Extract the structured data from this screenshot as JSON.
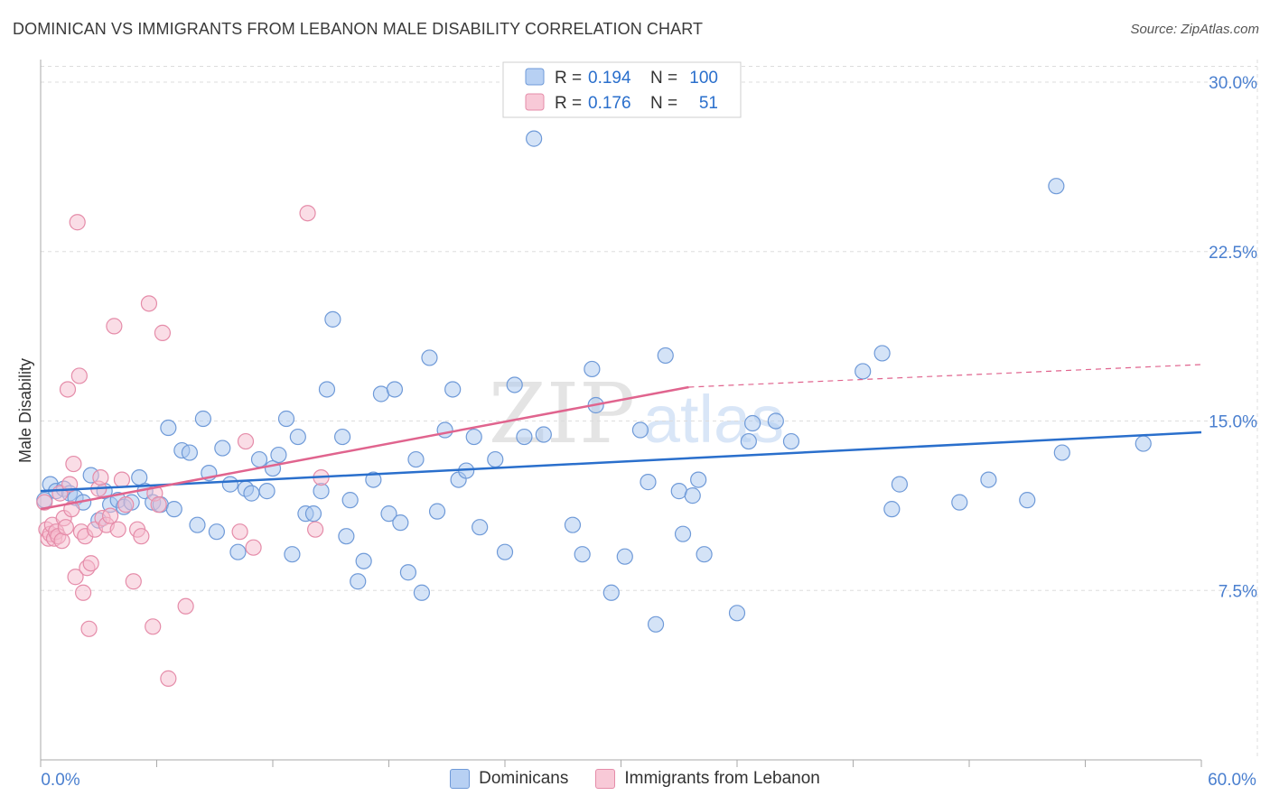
{
  "header": {
    "title": "DOMINICAN VS IMMIGRANTS FROM LEBANON MALE DISABILITY CORRELATION CHART",
    "source": "Source: ZipAtlas.com"
  },
  "watermark": {
    "zip": "ZIP",
    "atlas": "atlas"
  },
  "colors": {
    "blue_fill": "#a9c7f0",
    "blue_stroke": "#6f9ad8",
    "blue_line": "#2a6fcc",
    "pink_fill": "#f6bccd",
    "pink_stroke": "#e58ca9",
    "pink_line": "#e0648e",
    "axis_text": "#4a7fcf",
    "grid": "#dddddd"
  },
  "chart_data": {
    "type": "scatter",
    "title": "DOMINICAN VS IMMIGRANTS FROM LEBANON MALE DISABILITY CORRELATION CHART",
    "xlabel": "",
    "ylabel": "Male Disability",
    "xlim": [
      0,
      60
    ],
    "ylim": [
      0,
      31
    ],
    "x_tick_labels": [
      "0.0%",
      "60.0%"
    ],
    "y_ticks": [
      7.5,
      15.0,
      22.5,
      30.0
    ],
    "y_tick_labels": [
      "7.5%",
      "15.0%",
      "22.5%",
      "30.0%"
    ],
    "grid": true,
    "legend_position": "top-center",
    "stats": [
      {
        "r_label": "R =",
        "r": "0.194",
        "n_label": "N =",
        "n": "100"
      },
      {
        "r_label": "R =",
        "r": "0.176",
        "n_label": "N =",
        "n": "51"
      }
    ],
    "series": [
      {
        "name": "Dominicans",
        "trend": {
          "x0": 0,
          "y0": 11.9,
          "x1": 60,
          "y1": 14.5
        },
        "points": [
          [
            0.5,
            12.2
          ],
          [
            0.8,
            11.9
          ],
          [
            1.2,
            12.0
          ],
          [
            1.5,
            11.8
          ],
          [
            1.8,
            11.6
          ],
          [
            2.2,
            11.4
          ],
          [
            2.6,
            12.6
          ],
          [
            3.0,
            10.6
          ],
          [
            3.3,
            11.9
          ],
          [
            3.6,
            11.3
          ],
          [
            4.0,
            11.5
          ],
          [
            4.3,
            11.2
          ],
          [
            4.7,
            11.4
          ],
          [
            5.1,
            12.5
          ],
          [
            5.4,
            11.9
          ],
          [
            5.8,
            11.4
          ],
          [
            6.2,
            11.3
          ],
          [
            6.6,
            14.7
          ],
          [
            6.9,
            11.1
          ],
          [
            7.3,
            13.7
          ],
          [
            7.7,
            13.6
          ],
          [
            8.1,
            10.4
          ],
          [
            8.4,
            15.1
          ],
          [
            8.7,
            12.7
          ],
          [
            9.1,
            10.1
          ],
          [
            9.4,
            13.8
          ],
          [
            9.8,
            12.2
          ],
          [
            10.2,
            9.2
          ],
          [
            10.6,
            12.0
          ],
          [
            10.9,
            11.8
          ],
          [
            11.3,
            13.3
          ],
          [
            11.7,
            11.9
          ],
          [
            12.0,
            12.9
          ],
          [
            12.3,
            13.5
          ],
          [
            12.7,
            15.1
          ],
          [
            13.0,
            9.1
          ],
          [
            13.3,
            14.3
          ],
          [
            13.7,
            10.9
          ],
          [
            14.1,
            10.9
          ],
          [
            14.5,
            11.9
          ],
          [
            14.8,
            16.4
          ],
          [
            15.1,
            19.5
          ],
          [
            15.6,
            14.3
          ],
          [
            16.0,
            11.5
          ],
          [
            15.8,
            9.9
          ],
          [
            16.4,
            7.9
          ],
          [
            16.7,
            8.8
          ],
          [
            17.2,
            12.4
          ],
          [
            17.6,
            16.2
          ],
          [
            18.0,
            10.9
          ],
          [
            18.3,
            16.4
          ],
          [
            18.6,
            10.5
          ],
          [
            19.0,
            8.3
          ],
          [
            19.4,
            13.3
          ],
          [
            19.7,
            7.4
          ],
          [
            20.1,
            17.8
          ],
          [
            20.5,
            11.0
          ],
          [
            20.9,
            14.6
          ],
          [
            21.3,
            16.4
          ],
          [
            21.6,
            12.4
          ],
          [
            22.0,
            12.8
          ],
          [
            22.4,
            14.3
          ],
          [
            22.7,
            10.3
          ],
          [
            23.5,
            13.3
          ],
          [
            24.0,
            9.2
          ],
          [
            24.5,
            16.6
          ],
          [
            25.0,
            14.3
          ],
          [
            25.5,
            27.5
          ],
          [
            26.0,
            14.4
          ],
          [
            27.5,
            10.4
          ],
          [
            28.0,
            9.1
          ],
          [
            28.5,
            17.3
          ],
          [
            28.7,
            15.7
          ],
          [
            29.5,
            7.4
          ],
          [
            30.2,
            9.0
          ],
          [
            31.0,
            14.6
          ],
          [
            31.4,
            12.3
          ],
          [
            31.8,
            6.0
          ],
          [
            32.3,
            17.9
          ],
          [
            33.0,
            11.9
          ],
          [
            33.2,
            10.0
          ],
          [
            33.7,
            11.7
          ],
          [
            34.0,
            12.4
          ],
          [
            34.3,
            9.1
          ],
          [
            36.0,
            6.5
          ],
          [
            36.6,
            14.1
          ],
          [
            36.8,
            14.9
          ],
          [
            38.0,
            15.0
          ],
          [
            38.8,
            14.1
          ],
          [
            42.5,
            17.2
          ],
          [
            43.5,
            18.0
          ],
          [
            44.0,
            11.1
          ],
          [
            44.4,
            12.2
          ],
          [
            47.5,
            11.4
          ],
          [
            49.0,
            12.4
          ],
          [
            51.0,
            11.5
          ],
          [
            52.5,
            25.4
          ],
          [
            52.8,
            13.6
          ],
          [
            57.0,
            14.0
          ],
          [
            0.2,
            11.5
          ]
        ]
      },
      {
        "name": "Immigrants from Lebanon",
        "trend": {
          "x0": 0,
          "y0": 11.1,
          "x1": 33.5,
          "y1": 16.5,
          "dash_x1": 60,
          "dash_y1": 17.5
        },
        "points": [
          [
            0.2,
            11.4
          ],
          [
            0.3,
            10.2
          ],
          [
            0.4,
            9.8
          ],
          [
            0.5,
            10.0
          ],
          [
            0.6,
            10.4
          ],
          [
            0.7,
            9.8
          ],
          [
            0.8,
            10.1
          ],
          [
            0.9,
            9.9
          ],
          [
            1.0,
            11.8
          ],
          [
            1.1,
            9.7
          ],
          [
            1.2,
            10.7
          ],
          [
            1.3,
            10.3
          ],
          [
            1.4,
            16.4
          ],
          [
            1.5,
            12.2
          ],
          [
            1.6,
            11.1
          ],
          [
            1.7,
            13.1
          ],
          [
            1.8,
            8.1
          ],
          [
            1.9,
            23.8
          ],
          [
            2.0,
            17.0
          ],
          [
            2.1,
            10.1
          ],
          [
            2.2,
            7.4
          ],
          [
            2.3,
            9.9
          ],
          [
            2.4,
            8.5
          ],
          [
            2.5,
            5.8
          ],
          [
            2.6,
            8.7
          ],
          [
            2.8,
            10.2
          ],
          [
            3.0,
            12.0
          ],
          [
            3.1,
            12.5
          ],
          [
            3.2,
            10.7
          ],
          [
            3.4,
            10.4
          ],
          [
            3.6,
            10.8
          ],
          [
            3.8,
            19.2
          ],
          [
            4.0,
            10.2
          ],
          [
            4.2,
            12.4
          ],
          [
            4.4,
            11.3
          ],
          [
            4.8,
            7.9
          ],
          [
            5.0,
            10.2
          ],
          [
            5.2,
            9.9
          ],
          [
            5.6,
            20.2
          ],
          [
            5.8,
            5.9
          ],
          [
            5.9,
            11.8
          ],
          [
            6.1,
            11.3
          ],
          [
            6.3,
            18.9
          ],
          [
            6.6,
            3.6
          ],
          [
            7.5,
            6.8
          ],
          [
            10.3,
            10.1
          ],
          [
            10.6,
            14.1
          ],
          [
            11.0,
            9.4
          ],
          [
            13.8,
            24.2
          ],
          [
            14.2,
            10.2
          ],
          [
            14.5,
            12.5
          ]
        ]
      }
    ]
  }
}
